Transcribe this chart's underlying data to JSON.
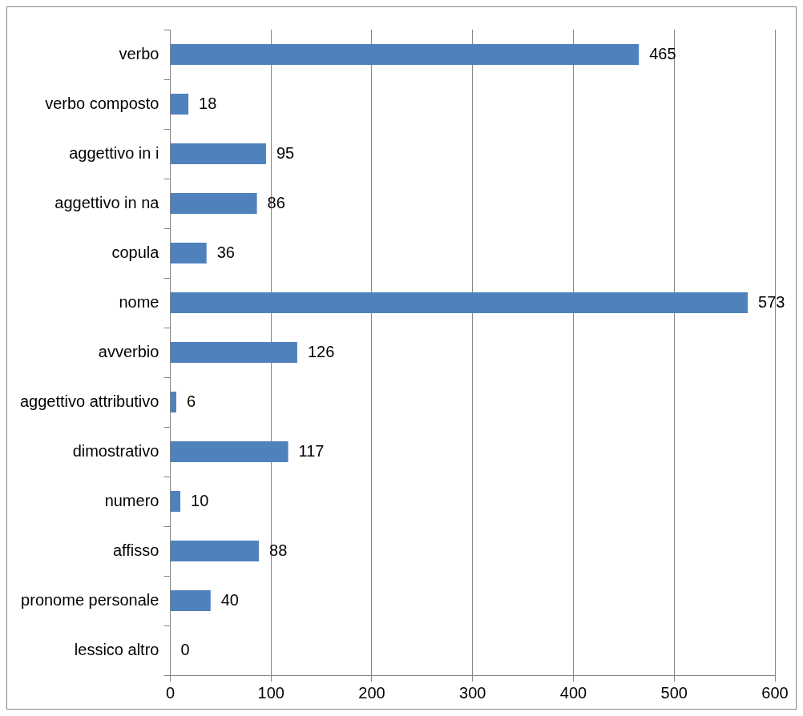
{
  "chart_data": {
    "type": "bar",
    "orientation": "horizontal",
    "categories": [
      "verbo",
      "verbo composto",
      "aggettivo in i",
      "aggettivo in na",
      "copula",
      "nome",
      "avverbio",
      "aggettivo attributivo",
      "dimostrativo",
      "numero",
      "affisso",
      "pronome personale",
      "lessico altro"
    ],
    "values": [
      465,
      18,
      95,
      86,
      36,
      573,
      126,
      6,
      117,
      10,
      88,
      40,
      0
    ],
    "color": "#4f81bd",
    "xlim": [
      0,
      600
    ],
    "xticks": [
      0,
      100,
      200,
      300,
      400,
      500,
      600
    ],
    "grid": "x",
    "legend": false,
    "data_labels": true
  }
}
